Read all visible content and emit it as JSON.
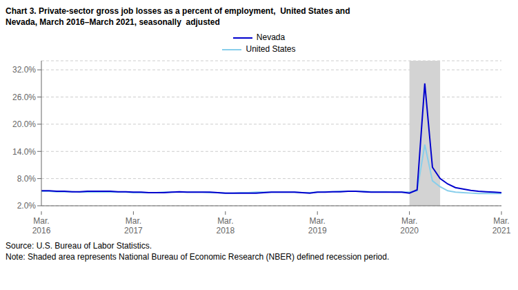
{
  "chart_data": {
    "type": "line",
    "title": "Chart 3. Private-sector gross job losses as a percent of employment,  United States and\nNevada, March 2016–March 2021, seasonally  adjusted",
    "annotations": [
      "Source: U.S. Bureau of Labor Statistics.",
      "Note: Shaded area represents National Bureau of Economic Research (NBER) defined recession period."
    ],
    "categories": [
      "Mar.\n2016",
      null,
      null,
      null,
      null,
      null,
      null,
      null,
      null,
      null,
      null,
      null,
      "Mar.\n2017",
      null,
      null,
      null,
      null,
      null,
      null,
      null,
      null,
      null,
      null,
      null,
      "Mar.\n2018",
      null,
      null,
      null,
      null,
      null,
      null,
      null,
      null,
      null,
      null,
      null,
      "Mar.\n2019",
      null,
      null,
      null,
      null,
      null,
      null,
      null,
      null,
      null,
      null,
      null,
      "Mar.\n2020",
      null,
      null,
      null,
      null,
      null,
      null,
      null,
      null,
      null,
      null,
      null,
      "Mar.\n2021"
    ],
    "series": [
      {
        "name": "Nevada",
        "color": "#0000CD",
        "values": [
          5.3,
          5.3,
          5.2,
          5.2,
          5.1,
          5.1,
          5.2,
          5.2,
          5.2,
          5.2,
          5.1,
          5.1,
          5.0,
          5.0,
          4.9,
          4.9,
          4.9,
          5.0,
          5.1,
          5.0,
          5.0,
          5.0,
          5.0,
          4.9,
          4.8,
          4.8,
          4.8,
          4.8,
          4.8,
          4.9,
          5.0,
          5.0,
          5.0,
          5.0,
          4.9,
          4.8,
          5.0,
          5.0,
          5.1,
          5.1,
          5.2,
          5.2,
          5.1,
          5.0,
          5.0,
          5.0,
          5.0,
          5.0,
          4.8,
          5.5,
          29.0,
          10.5,
          8.0,
          6.8,
          6.0,
          5.7,
          5.4,
          5.2,
          5.1,
          5.0,
          4.9
        ]
      },
      {
        "name": "United States",
        "color": "#87CEEB",
        "values": [
          5.2,
          5.2,
          5.1,
          5.1,
          5.1,
          5.0,
          5.0,
          5.0,
          5.0,
          5.0,
          5.0,
          5.0,
          4.9,
          4.9,
          4.9,
          4.9,
          5.0,
          5.0,
          5.0,
          5.0,
          5.0,
          5.0,
          4.9,
          4.9,
          4.8,
          4.8,
          4.9,
          4.9,
          5.0,
          5.0,
          5.0,
          5.0,
          5.0,
          5.0,
          4.9,
          4.9,
          5.0,
          5.1,
          5.1,
          5.2,
          5.2,
          5.2,
          5.2,
          5.1,
          5.1,
          5.1,
          5.0,
          5.0,
          5.0,
          5.3,
          15.5,
          7.5,
          6.2,
          5.3,
          5.0,
          4.9,
          4.8,
          4.7,
          4.7,
          4.7,
          4.7
        ]
      }
    ],
    "shaded_span": {
      "from": 48,
      "to": 52,
      "color": "#D3D3D3"
    },
    "ylim": [
      2.0,
      34.0
    ],
    "yticks": [
      {
        "value": 2.0,
        "label": "2.0%"
      },
      {
        "value": 8.0,
        "label": "8.0%"
      },
      {
        "value": 14.0,
        "label": "14.0%"
      },
      {
        "value": 20.0,
        "label": "20.0%"
      },
      {
        "value": 26.0,
        "label": "26.0%"
      },
      {
        "value": 32.0,
        "label": "32.0%"
      }
    ],
    "grid": true,
    "legend": "top"
  }
}
